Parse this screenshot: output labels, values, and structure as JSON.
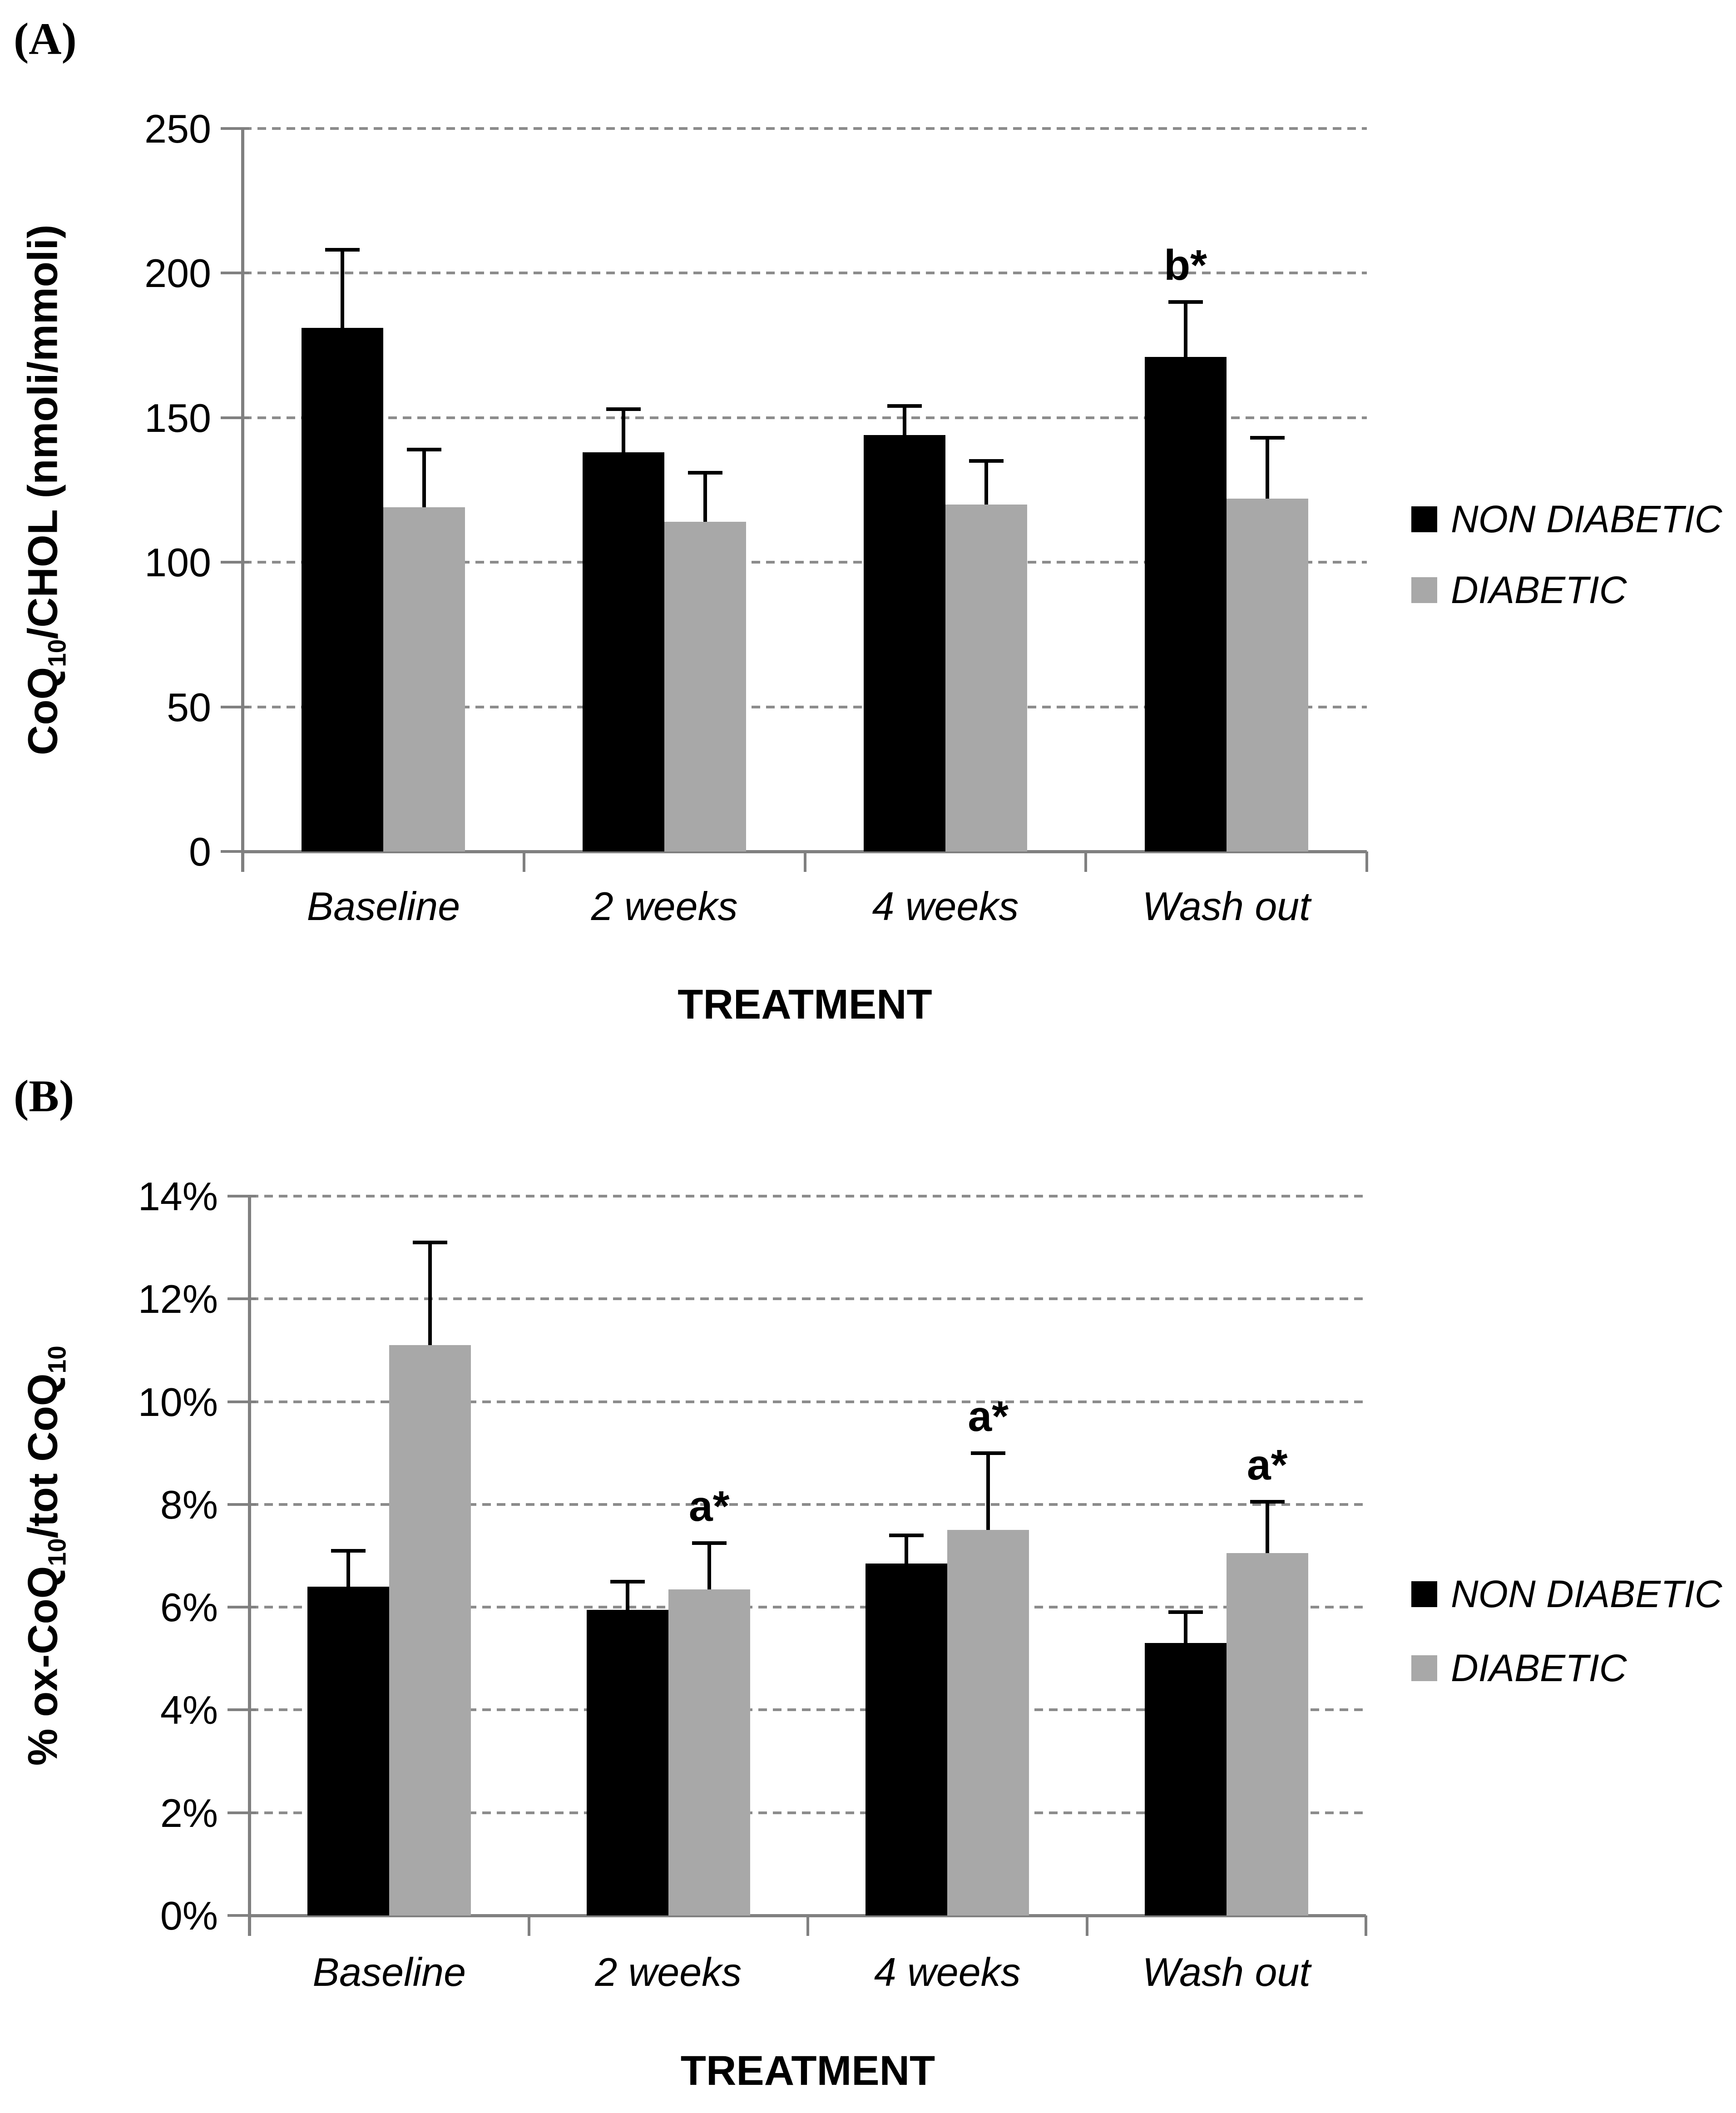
{
  "figure_colors": {
    "non_diabetic_bar": "#000000",
    "diabetic_bar": "#A8A8A8",
    "axis": "#808080",
    "gridline": "#8C8C8C"
  },
  "chart_data": [
    {
      "panel_label": "(A)",
      "type": "bar",
      "categories": [
        "Baseline",
        "2 weeks",
        "4 weeks",
        "Wash out"
      ],
      "series": [
        {
          "name": "NON DIABETIC",
          "color": "#000000",
          "values": [
            181,
            138,
            144,
            171
          ],
          "sd_upper": [
            27,
            15,
            10,
            19
          ],
          "sig": [
            "",
            "",
            "",
            "b*"
          ]
        },
        {
          "name": "DIABETIC",
          "color": "#A8A8A8",
          "values": [
            119,
            114,
            120,
            122
          ],
          "sd_upper": [
            20,
            17,
            15,
            21
          ],
          "sig": [
            "",
            "",
            "",
            ""
          ]
        }
      ],
      "ylabel_parts": [
        "CoQ",
        "10",
        "/CHOL (nmoli/mmoli)"
      ],
      "xlabel": "TREATMENT",
      "ylim": [
        0,
        250
      ],
      "ystep": 50,
      "ytick_labels": [
        "0",
        "50",
        "100",
        "150",
        "200",
        "250"
      ],
      "grid": "horizontal dashed",
      "legend_position": "right"
    },
    {
      "panel_label": "(B)",
      "type": "bar",
      "categories": [
        "Baseline",
        "2 weeks",
        "4 weeks",
        "Wash out"
      ],
      "series": [
        {
          "name": "NON DIABETIC",
          "color": "#000000",
          "values": [
            6.4,
            5.95,
            6.85,
            5.3
          ],
          "sd_upper": [
            0.7,
            0.55,
            0.55,
            0.6
          ],
          "sig": [
            "",
            "",
            "",
            ""
          ]
        },
        {
          "name": "DIABETIC",
          "color": "#A8A8A8",
          "values": [
            11.1,
            6.35,
            7.5,
            7.05
          ],
          "sd_upper": [
            2.0,
            0.9,
            1.5,
            1.0
          ],
          "sig": [
            "",
            "a*",
            "a*",
            "a*"
          ]
        }
      ],
      "ylabel_parts": [
        "% ox-CoQ",
        "10",
        "/tot CoQ",
        "10"
      ],
      "xlabel": "TREATMENT",
      "ylim": [
        0,
        14
      ],
      "ystep": 2,
      "ytick_labels": [
        "0%",
        "2%",
        "4%",
        "6%",
        "8%",
        "10%",
        "12%",
        "14%"
      ],
      "grid": "horizontal dashed",
      "legend_position": "right"
    }
  ]
}
